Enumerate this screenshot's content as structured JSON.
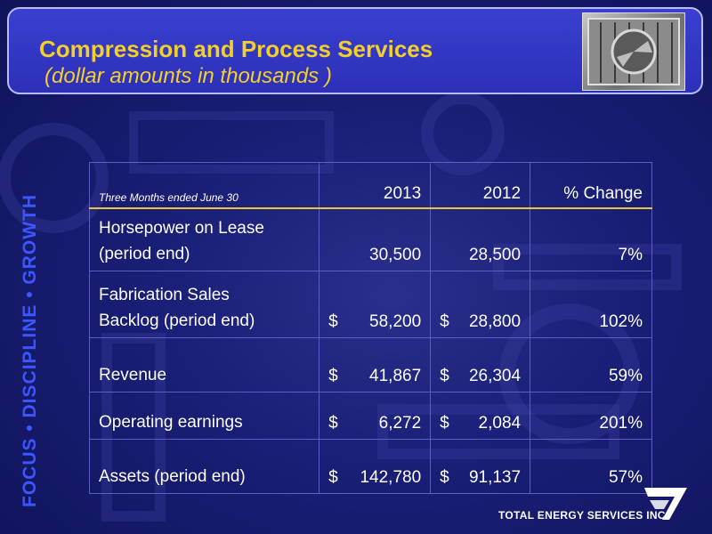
{
  "header": {
    "title": "Compression and Process Services",
    "subtitle": "(dollar amounts in thousands )"
  },
  "side_tagline": "FOCUS • DISCIPLINE • GROWTH",
  "table": {
    "columns": [
      "Three Months ended  June 30",
      "2013",
      "2012",
      "% Change"
    ],
    "rows": [
      {
        "label_lines": [
          "Horsepower on Lease",
          "(period end)"
        ],
        "y2013_cur": "",
        "y2013": "30,500",
        "y2012_cur": "",
        "y2012": "28,500",
        "change": "7%"
      },
      {
        "label_lines": [
          "Fabrication Sales",
          "Backlog (period end)"
        ],
        "y2013_cur": "$",
        "y2013": "58,200",
        "y2012_cur": "$",
        "y2012": "28,800",
        "change": "102%"
      },
      {
        "label_lines": [
          "Revenue"
        ],
        "y2013_cur": "$",
        "y2013": "41,867",
        "y2012_cur": "$",
        "y2012": "26,304",
        "change": "59%"
      },
      {
        "label_lines": [
          "Operating earnings"
        ],
        "y2013_cur": "$",
        "y2013": "6,272",
        "y2012_cur": "$",
        "y2012": "2,084",
        "change": "201%"
      },
      {
        "label_lines": [
          "Assets (period end)"
        ],
        "y2013_cur": "$",
        "y2013": "142,780",
        "y2012_cur": "$",
        "y2012": "91,137",
        "change": "57%"
      }
    ]
  },
  "footer": {
    "company": "TOTAL ENERGY SERVICES INC."
  },
  "colors": {
    "title": "#f2cf2b",
    "tagline": "#3b55ff",
    "header_bg": "#3035c4",
    "page_bg": "#1a1f78"
  }
}
